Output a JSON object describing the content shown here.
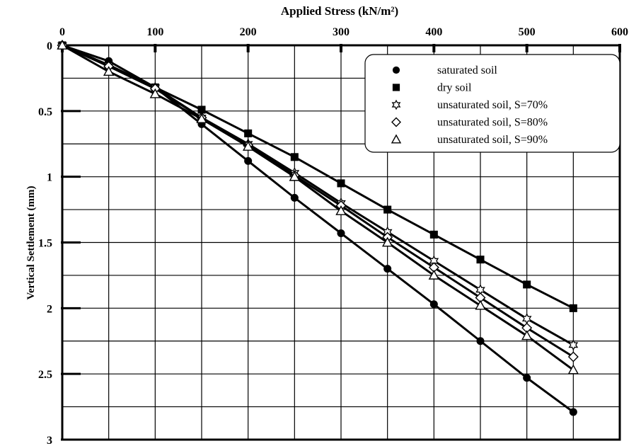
{
  "chart_data": {
    "type": "line",
    "title": "",
    "xlabel": "Applied Stress (kN/m²)",
    "ylabel": "Vertical Settlement (mm)",
    "xlim": [
      0,
      600
    ],
    "ylim": [
      0,
      3
    ],
    "y_inverted": true,
    "x_axis_position": "top",
    "x_ticks": [
      0,
      100,
      200,
      300,
      400,
      500,
      600
    ],
    "y_ticks": [
      0,
      0.5,
      1,
      1.5,
      2,
      2.5,
      3
    ],
    "x_tick_labels": [
      "0",
      "100",
      "200",
      "300",
      "400",
      "500",
      "600"
    ],
    "y_tick_labels": [
      "0",
      "0.5",
      "1",
      "1.5",
      "2",
      "2.5",
      "3"
    ],
    "grid": true,
    "legend_position": "top-right",
    "series": [
      {
        "name": "saturated soil",
        "marker": "circle",
        "x": [
          0,
          50,
          100,
          150,
          200,
          250,
          300,
          350,
          400,
          450,
          500,
          550
        ],
        "y": [
          0,
          0.12,
          0.32,
          0.6,
          0.88,
          1.16,
          1.43,
          1.7,
          1.97,
          2.25,
          2.53,
          2.79
        ]
      },
      {
        "name": "dry soil",
        "marker": "square",
        "x": [
          0,
          50,
          100,
          150,
          200,
          250,
          300,
          350,
          400,
          450,
          500,
          550
        ],
        "y": [
          0,
          0.15,
          0.32,
          0.49,
          0.67,
          0.85,
          1.05,
          1.25,
          1.44,
          1.63,
          1.82,
          2.0
        ]
      },
      {
        "name": "unsaturated soil, S=70%",
        "marker": "star",
        "x": [
          0,
          50,
          100,
          150,
          200,
          250,
          300,
          350,
          400,
          450,
          500,
          550
        ],
        "y": [
          0,
          0.15,
          0.32,
          0.55,
          0.75,
          0.97,
          1.2,
          1.42,
          1.64,
          1.86,
          2.08,
          2.28
        ]
      },
      {
        "name": "unsaturated soil, S=80%",
        "marker": "diamond",
        "x": [
          0,
          50,
          100,
          150,
          200,
          250,
          300,
          350,
          400,
          450,
          500,
          550
        ],
        "y": [
          0,
          0.16,
          0.33,
          0.55,
          0.76,
          0.99,
          1.22,
          1.46,
          1.69,
          1.92,
          2.15,
          2.37
        ]
      },
      {
        "name": "unsaturated soil, S=90%",
        "marker": "triangle",
        "x": [
          0,
          50,
          100,
          150,
          200,
          250,
          300,
          350,
          400,
          450,
          500,
          550
        ],
        "y": [
          0,
          0.2,
          0.37,
          0.56,
          0.77,
          1.0,
          1.26,
          1.5,
          1.75,
          1.98,
          2.21,
          2.47
        ]
      }
    ]
  }
}
